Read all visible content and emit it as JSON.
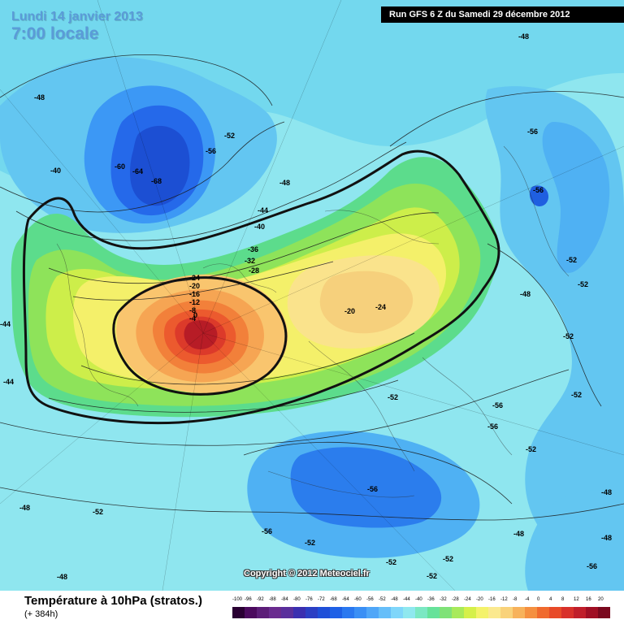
{
  "header": {
    "date": "Lundi 14 janvier 2013",
    "time": "7:00 locale",
    "run": "Run GFS 6 Z du Samedi 29 décembre 2012"
  },
  "map": {
    "copyright": "Copyright © 2012 Meteociel.fr",
    "contour_labels": [
      "-48",
      "-40",
      "-60",
      "-64",
      "-68",
      "-56",
      "-52",
      "-48",
      "-44",
      "-40",
      "-36",
      "-32",
      "-28",
      "-24",
      "-20",
      "-16",
      "-12",
      "-8",
      "-4",
      "0",
      "-20",
      "-24",
      "-44",
      "-44",
      "-48",
      "-56",
      "-56",
      "-52",
      "-52",
      "-48",
      "-52",
      "-56",
      "-56",
      "-52",
      "-52",
      "-48",
      "-48",
      "-52",
      "-56",
      "-56",
      "-52",
      "-48",
      "-52",
      "-52",
      "-48",
      "-48",
      "-52",
      "-56",
      "-52"
    ]
  },
  "legend": {
    "title": "Température à 10hPa (stratos.)",
    "subtitle": "(+ 384h)",
    "scale_labels": [
      "-100",
      "-96",
      "-92",
      "-88",
      "-84",
      "-80",
      "-76",
      "-72",
      "-68",
      "-64",
      "-60",
      "-56",
      "-52",
      "-48",
      "-44",
      "-40",
      "-36",
      "-32",
      "-28",
      "-24",
      "-20",
      "-16",
      "-12",
      "-8",
      "-4",
      "0",
      "4",
      "8",
      "12",
      "16",
      "20"
    ],
    "scale_colors": [
      "#2a0033",
      "#4b0a5e",
      "#5c1d78",
      "#6a2b8f",
      "#5a2f9c",
      "#3b2fb0",
      "#2b3fc4",
      "#1f4fd8",
      "#1e60e6",
      "#2a78f0",
      "#3a8ff5",
      "#4fa6f8",
      "#66bef9",
      "#7fd6fa",
      "#8fe8ef",
      "#7be8c3",
      "#66e29a",
      "#7fe277",
      "#a8ea5a",
      "#d5f04a",
      "#f4f26a",
      "#fbe98f",
      "#f9d27a",
      "#f7b25b",
      "#f59040",
      "#f06a2e",
      "#e84a28",
      "#d8302a",
      "#c01e2a",
      "#a00f24",
      "#7a081e"
    ]
  }
}
